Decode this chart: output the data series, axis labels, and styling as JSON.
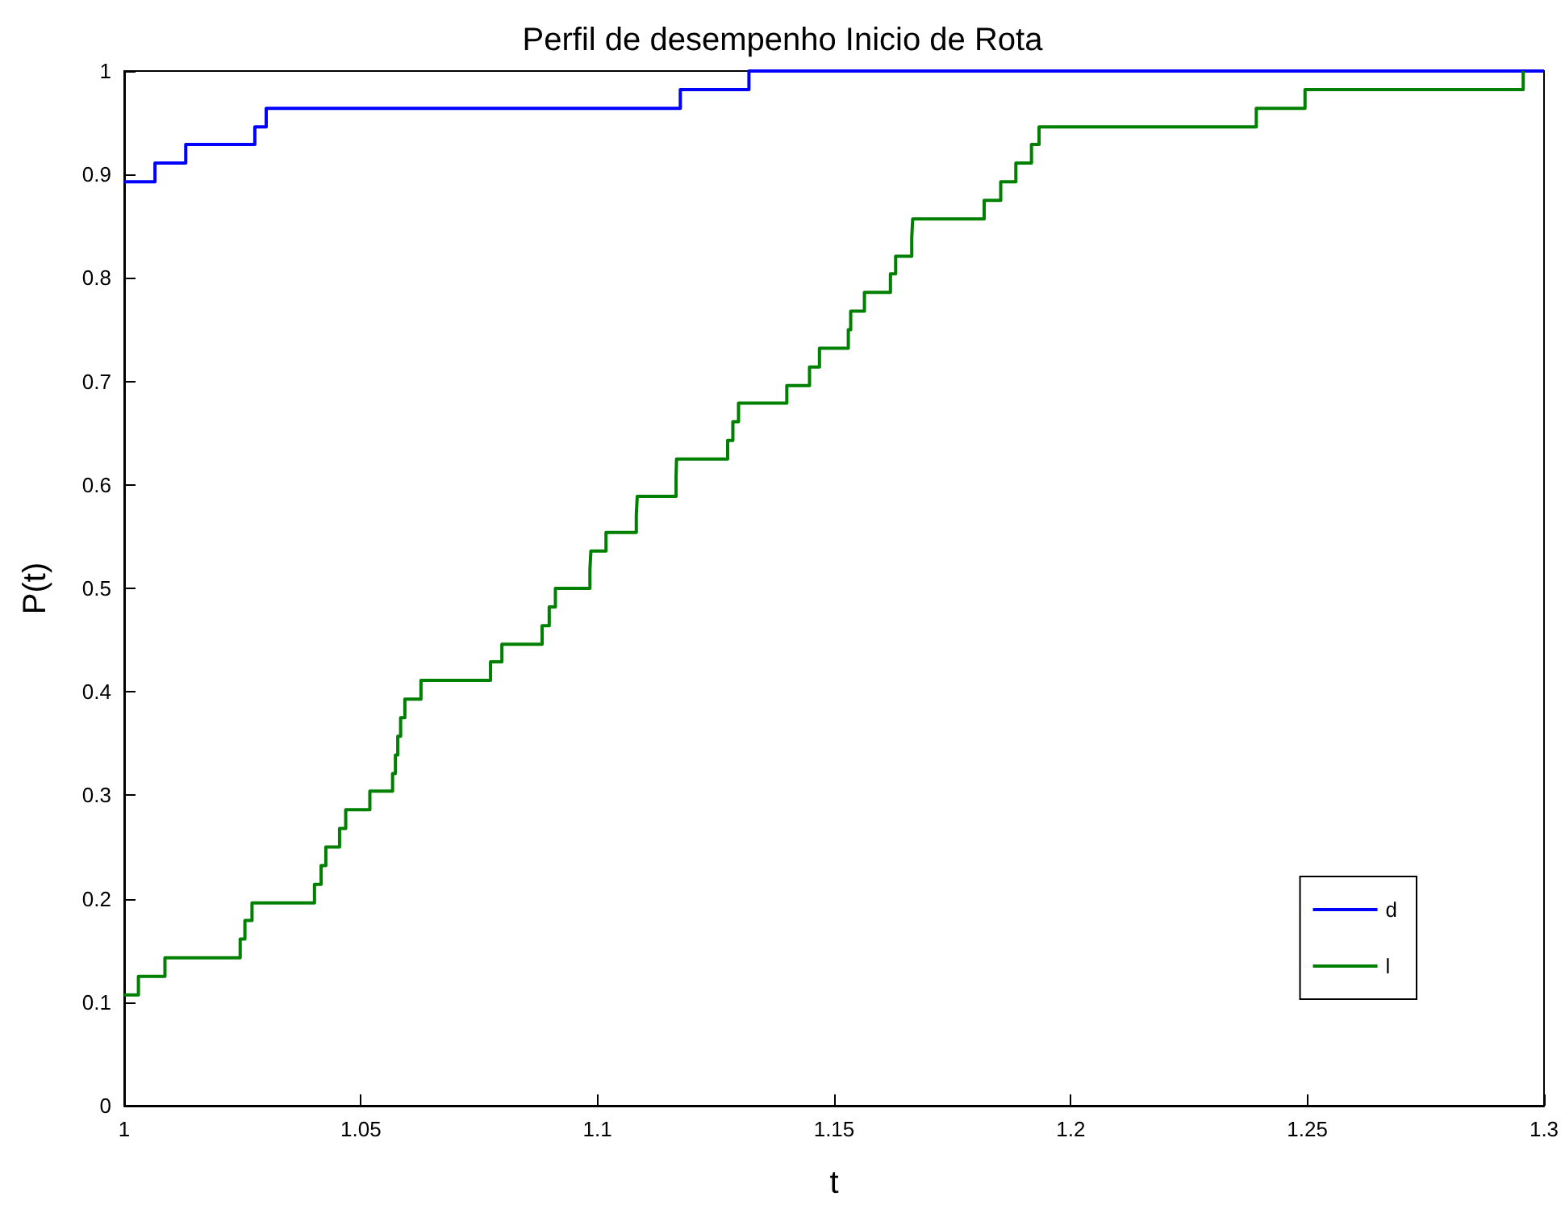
{
  "chart_data": {
    "type": "step",
    "title": "Perfil de desempenho Inicio de Rota",
    "xlabel": "t",
    "ylabel": "P(t)",
    "xlim": [
      1,
      1.3
    ],
    "ylim": [
      0,
      1
    ],
    "xticks": [
      1,
      1.05,
      1.1,
      1.15,
      1.2,
      1.25,
      1.3
    ],
    "yticks": [
      0,
      0.1,
      0.2,
      0.3,
      0.4,
      0.5,
      0.6,
      0.7,
      0.8,
      0.9,
      1
    ],
    "grid": false,
    "legend": "bottom right",
    "series": [
      {
        "name": "d",
        "color": "#0000ff",
        "x": [
          1,
          1.0065,
          1.013,
          1.0276,
          1.03,
          1.1175,
          1.132,
          1.3
        ],
        "values": [
          0.893,
          0.911,
          0.929,
          0.946,
          0.964,
          0.982,
          1,
          1
        ]
      },
      {
        "name": "l",
        "color": "#008000",
        "x": [
          1,
          1.003,
          1.0086,
          1.0245,
          1.0255,
          1.027,
          1.0402,
          1.0416,
          1.0426,
          1.0455,
          1.0468,
          1.0519,
          1.0567,
          1.0573,
          1.0578,
          1.0584,
          1.0593,
          1.0627,
          1.0774,
          1.0798,
          1.0883,
          1.0898,
          1.0911,
          1.0984,
          1.0986,
          1.1018,
          1.1082,
          1.1084,
          1.1166,
          1.1167,
          1.1275,
          1.1286,
          1.1298,
          1.14,
          1.1448,
          1.1469,
          1.153,
          1.1535,
          1.1564,
          1.1619,
          1.163,
          1.1664,
          1.1666,
          1.1817,
          1.1852,
          1.1884,
          1.1917,
          1.1933,
          1.2392,
          1.2495,
          1.2956
        ],
        "values": [
          0.107,
          0.125,
          0.143,
          0.161,
          0.179,
          0.196,
          0.214,
          0.232,
          0.25,
          0.268,
          0.286,
          0.304,
          0.321,
          0.339,
          0.357,
          0.375,
          0.393,
          0.411,
          0.429,
          0.446,
          0.464,
          0.482,
          0.5,
          0.518,
          0.536,
          0.554,
          0.571,
          0.589,
          0.607,
          0.625,
          0.643,
          0.661,
          0.679,
          0.696,
          0.714,
          0.732,
          0.75,
          0.768,
          0.786,
          0.804,
          0.821,
          0.839,
          0.857,
          0.875,
          0.893,
          0.911,
          0.929,
          0.946,
          0.964,
          0.982,
          1
        ]
      }
    ]
  }
}
